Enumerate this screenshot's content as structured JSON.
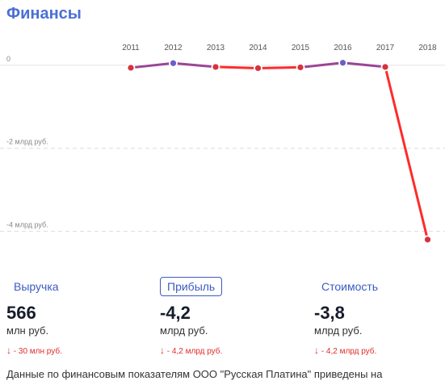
{
  "title": "Финансы",
  "chart_data": {
    "type": "line",
    "x": [
      "2011",
      "2012",
      "2013",
      "2014",
      "2015",
      "2016",
      "2017",
      "2018"
    ],
    "values": [
      -0.06,
      0.05,
      -0.04,
      -0.07,
      -0.05,
      0.06,
      -0.04,
      -4.2
    ],
    "y_ticks": [
      0,
      -2,
      -4
    ],
    "y_tick_labels": [
      "0",
      "-2 млрд руб.",
      "-4 млрд руб."
    ],
    "ylim": [
      -4.3,
      0.25
    ],
    "grid": true,
    "colors": {
      "positive": "#6a5ec8",
      "negative": "#ff2b2b"
    }
  },
  "metrics": [
    {
      "label": "Выручка",
      "value": "566",
      "unit": "млн руб.",
      "delta_arrow": "↓",
      "delta": " - 30 млн руб.",
      "active": false
    },
    {
      "label": "Прибыль",
      "value": "-4,2",
      "unit": "млрд руб.",
      "delta_arrow": "↓",
      "delta": " - 4,2 млрд руб.",
      "active": true
    },
    {
      "label": "Стоимость",
      "value": "-3,8",
      "unit": "млрд руб.",
      "delta_arrow": "↓",
      "delta": " - 4,2 млрд руб.",
      "active": false
    }
  ],
  "footer": "Данные по финансовым показателям ООО \"Русская Платина\" приведены на"
}
